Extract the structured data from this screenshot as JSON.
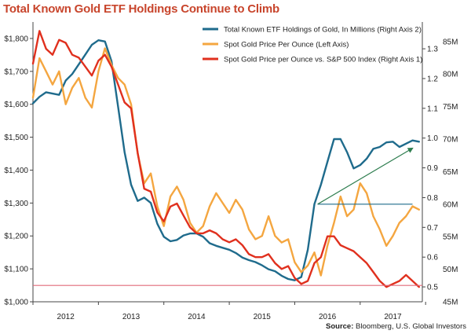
{
  "title": "Total Known Gold ETF Holdings Continue to Climb",
  "source_label": "Source:",
  "source_text": "Bloomberg, U.S. Global Investors",
  "colors": {
    "title": "#c8452c",
    "etf": "#1f6b8c",
    "gold": "#f4a640",
    "ratio": "#e0301e",
    "reference_line": "#e06a7a",
    "trend_arrow": "#2e7d4f"
  },
  "chart_data": {
    "type": "line",
    "title": "Total Known Gold ETF Holdings Continue to Climb",
    "legend_placement": "top-right",
    "grid": false,
    "x_ticks": [
      "2012",
      "2013",
      "2014",
      "2015",
      "2016",
      "2017"
    ],
    "xlim": [
      2011.5,
      2017.45
    ],
    "axes": {
      "left": {
        "ylim": [
          1000,
          1850
        ],
        "ticks": [
          "$1,000",
          "$1,100",
          "$1,200",
          "$1,300",
          "$1,400",
          "$1,500",
          "$1,600",
          "$1,700",
          "$1,800"
        ],
        "tick_values": [
          1000,
          1100,
          1200,
          1300,
          1400,
          1500,
          1600,
          1700,
          1800
        ]
      },
      "right1": {
        "ylim": [
          0.45,
          1.39
        ],
        "ticks": [
          "0.5",
          "0.6",
          "0.7",
          "0.8",
          "0.9",
          "1.0",
          "1.1",
          "1.2",
          "1.3"
        ],
        "tick_values": [
          0.5,
          0.6,
          0.7,
          0.8,
          0.9,
          1.0,
          1.1,
          1.2,
          1.3
        ]
      },
      "right2": {
        "ylim": [
          45,
          88
        ],
        "ticks": [
          "45M",
          "50M",
          "55M",
          "60M",
          "65M",
          "70M",
          "75M",
          "80M",
          "85M"
        ],
        "tick_values": [
          45,
          50,
          55,
          60,
          65,
          70,
          75,
          80,
          85
        ]
      }
    },
    "series": [
      {
        "name": "Total Known ETF Holdings of Gold, In Millions (Right Axis 2)",
        "axis": "right2",
        "color": "#1f6b8c",
        "x": [
          2011.5,
          2011.6,
          2011.7,
          2011.8,
          2011.9,
          2012.0,
          2012.1,
          2012.2,
          2012.3,
          2012.4,
          2012.5,
          2012.6,
          2012.7,
          2012.8,
          2012.9,
          2013.0,
          2013.1,
          2013.2,
          2013.3,
          2013.4,
          2013.5,
          2013.6,
          2013.7,
          2013.8,
          2013.9,
          2014.0,
          2014.1,
          2014.2,
          2014.3,
          2014.4,
          2014.5,
          2014.6,
          2014.7,
          2014.8,
          2014.9,
          2015.0,
          2015.1,
          2015.2,
          2015.3,
          2015.4,
          2015.5,
          2015.6,
          2015.7,
          2015.8,
          2015.9,
          2016.0,
          2016.1,
          2016.2,
          2016.3,
          2016.4,
          2016.5,
          2016.6,
          2016.7,
          2016.8,
          2016.9,
          2017.0,
          2017.1,
          2017.2,
          2017.3,
          2017.4
        ],
        "values": [
          75.5,
          76.5,
          77.2,
          77.0,
          76.8,
          79.0,
          80.0,
          81.5,
          83.0,
          84.5,
          85.2,
          85.0,
          82.0,
          75.0,
          68.0,
          63.0,
          60.5,
          61.0,
          60.2,
          57.0,
          55.0,
          54.3,
          54.5,
          55.2,
          55.5,
          55.5,
          55.0,
          54.0,
          53.6,
          53.3,
          53.0,
          52.5,
          51.8,
          51.4,
          51.1,
          50.6,
          50.0,
          49.7,
          49.0,
          48.5,
          48.3,
          48.8,
          53.0,
          60.0,
          63.0,
          66.5,
          70.0,
          70.0,
          68.0,
          65.5,
          66.0,
          67.0,
          68.5,
          68.8,
          69.5,
          69.6,
          68.8,
          69.3,
          69.8,
          69.6
        ]
      },
      {
        "name": "Spot Gold Price Per Ounce (Left Axis)",
        "axis": "left",
        "color": "#f4a640",
        "x": [
          2011.5,
          2011.6,
          2011.7,
          2011.8,
          2011.9,
          2012.0,
          2012.1,
          2012.2,
          2012.3,
          2012.4,
          2012.5,
          2012.6,
          2012.7,
          2012.8,
          2012.9,
          2013.0,
          2013.1,
          2013.2,
          2013.3,
          2013.4,
          2013.5,
          2013.6,
          2013.7,
          2013.8,
          2013.9,
          2014.0,
          2014.1,
          2014.2,
          2014.3,
          2014.4,
          2014.5,
          2014.6,
          2014.7,
          2014.8,
          2014.9,
          2015.0,
          2015.1,
          2015.2,
          2015.3,
          2015.4,
          2015.5,
          2015.6,
          2015.7,
          2015.8,
          2015.9,
          2016.0,
          2016.1,
          2016.2,
          2016.3,
          2016.4,
          2016.5,
          2016.6,
          2016.7,
          2016.8,
          2016.9,
          2017.0,
          2017.1,
          2017.2,
          2017.3,
          2017.4
        ],
        "values": [
          1620,
          1740,
          1700,
          1660,
          1700,
          1600,
          1650,
          1680,
          1620,
          1590,
          1700,
          1770,
          1720,
          1680,
          1660,
          1600,
          1450,
          1360,
          1390,
          1290,
          1230,
          1320,
          1350,
          1310,
          1240,
          1210,
          1230,
          1290,
          1330,
          1300,
          1270,
          1310,
          1280,
          1220,
          1190,
          1200,
          1260,
          1200,
          1180,
          1190,
          1120,
          1090,
          1110,
          1150,
          1080,
          1170,
          1240,
          1320,
          1260,
          1280,
          1360,
          1330,
          1260,
          1220,
          1170,
          1200,
          1240,
          1260,
          1290,
          1280
        ]
      },
      {
        "name": "Spot Gold Price per Ounce vs. S&P 500 Index (Right Axis 1)",
        "axis": "right1",
        "color": "#e0301e",
        "x": [
          2011.5,
          2011.6,
          2011.7,
          2011.8,
          2011.9,
          2012.0,
          2012.1,
          2012.2,
          2012.3,
          2012.4,
          2012.5,
          2012.6,
          2012.7,
          2012.8,
          2012.9,
          2013.0,
          2013.1,
          2013.2,
          2013.3,
          2013.4,
          2013.5,
          2013.6,
          2013.7,
          2013.8,
          2013.9,
          2014.0,
          2014.1,
          2014.2,
          2014.3,
          2014.4,
          2014.5,
          2014.6,
          2014.7,
          2014.8,
          2014.9,
          2015.0,
          2015.1,
          2015.2,
          2015.3,
          2015.4,
          2015.5,
          2015.6,
          2015.7,
          2015.8,
          2015.9,
          2016.0,
          2016.1,
          2016.2,
          2016.3,
          2016.4,
          2016.5,
          2016.6,
          2016.7,
          2016.8,
          2016.9,
          2017.0,
          2017.1,
          2017.2,
          2017.3,
          2017.4
        ],
        "values": [
          1.25,
          1.36,
          1.3,
          1.28,
          1.33,
          1.32,
          1.28,
          1.27,
          1.24,
          1.21,
          1.26,
          1.28,
          1.24,
          1.18,
          1.12,
          1.1,
          0.95,
          0.83,
          0.82,
          0.75,
          0.72,
          0.77,
          0.78,
          0.74,
          0.7,
          0.68,
          0.68,
          0.69,
          0.68,
          0.66,
          0.65,
          0.66,
          0.64,
          0.61,
          0.6,
          0.6,
          0.61,
          0.58,
          0.56,
          0.57,
          0.53,
          0.51,
          0.52,
          0.58,
          0.6,
          0.67,
          0.67,
          0.64,
          0.63,
          0.62,
          0.6,
          0.58,
          0.55,
          0.52,
          0.5,
          0.51,
          0.52,
          0.54,
          0.52,
          0.5
        ]
      }
    ],
    "reference_lines": [
      {
        "axis": "right1",
        "value": 0.505,
        "color": "#e06a7a",
        "from_x": 2011.5,
        "to_x": 2017.45
      },
      {
        "axis": "right2",
        "value": 60.0,
        "color": "#1f6b8c",
        "from_x": 2015.85,
        "to_x": 2017.3
      }
    ],
    "trend_arrows": [
      {
        "axis": "right2",
        "from": [
          2015.85,
          60.0
        ],
        "to": [
          2017.3,
          68.6
        ],
        "color": "#2e7d4f"
      }
    ]
  }
}
